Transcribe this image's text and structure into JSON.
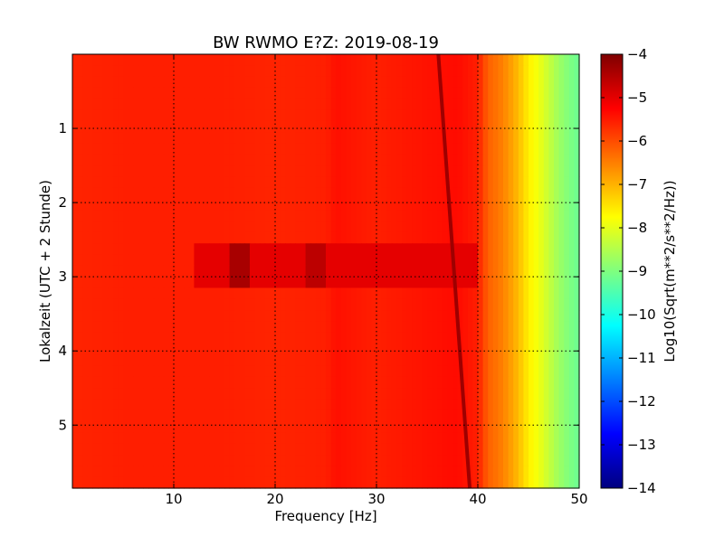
{
  "chart_data": {
    "type": "heatmap",
    "title": "BW RWMO E?Z: 2019-08-19",
    "xlabel": "Frequency [Hz]",
    "ylabel": "Lokalzeit (UTC + 2 Stunde)",
    "colorbar_label": "Log10(Sqrt(m**2/s**2/Hz))",
    "xlim": [
      0,
      50
    ],
    "ylim": [
      5.85,
      0
    ],
    "color_range": [
      -14,
      -4
    ],
    "grid": true,
    "colormap": [
      "#00007f",
      "#0000ff",
      "#007fff",
      "#00ffff",
      "#7fff7f",
      "#ffff00",
      "#ff7f00",
      "#ff0000",
      "#7f0000"
    ],
    "x_ticks": [
      10,
      20,
      30,
      40,
      50
    ],
    "y_ticks": [
      1,
      2,
      3,
      4,
      5
    ],
    "colorbar_ticks": [
      -4,
      -5,
      -6,
      -7,
      -8,
      -9,
      -10,
      -11,
      -12,
      -13,
      -14
    ],
    "x_tick_labels": [
      "10",
      "20",
      "30",
      "40",
      "50"
    ],
    "y_tick_labels": [
      "1",
      "2",
      "3",
      "4",
      "5"
    ],
    "colorbar_tick_labels": [
      "−4",
      "−5",
      "−6",
      "−7",
      "−8",
      "−9",
      "−10",
      "−11",
      "−12",
      "−13",
      "−14"
    ],
    "x": {
      "min": 0,
      "max": 50,
      "step": 0.5
    },
    "y": {
      "min": 0,
      "max": 5.85,
      "step": 0.15
    },
    "value_profile": {
      "description": "Spectral level versus frequency; power is roughly constant in time except for features listed below",
      "frequency_hz": [
        0,
        5,
        10,
        15,
        20,
        25,
        26,
        30,
        34,
        38,
        40,
        41,
        42,
        43,
        44,
        45,
        46,
        47,
        48,
        49,
        50
      ],
      "log10_value": [
        -5.6,
        -5.55,
        -5.55,
        -5.55,
        -5.6,
        -5.55,
        -5.4,
        -5.55,
        -5.45,
        -5.35,
        -5.55,
        -6.2,
        -6.4,
        -6.7,
        -7.1,
        -7.6,
        -7.9,
        -8.3,
        -8.7,
        -9.0,
        -9.2
      ]
    },
    "features": [
      {
        "name": "drifting line",
        "type": "line",
        "from": {
          "frequency_hz": 36.1,
          "time_h": 0
        },
        "to": {
          "frequency_hz": 39.2,
          "time_h": 5.85
        },
        "log10_value": -4.3
      },
      {
        "name": "broadband disturbance",
        "type": "band",
        "time_h": [
          2.5,
          3.1
        ],
        "frequency_hz": [
          12,
          40
        ],
        "log10_value": -5.0
      },
      {
        "name": "burst near 16 Hz",
        "type": "patch",
        "frequency_hz": [
          15.5,
          17.5
        ],
        "time_h": [
          2.55,
          3.15
        ],
        "log10_value": -4.4
      },
      {
        "name": "burst near 24 Hz",
        "type": "patch",
        "frequency_hz": [
          23,
          25
        ],
        "time_h": [
          2.55,
          3.1
        ],
        "log10_value": -4.6
      }
    ]
  }
}
